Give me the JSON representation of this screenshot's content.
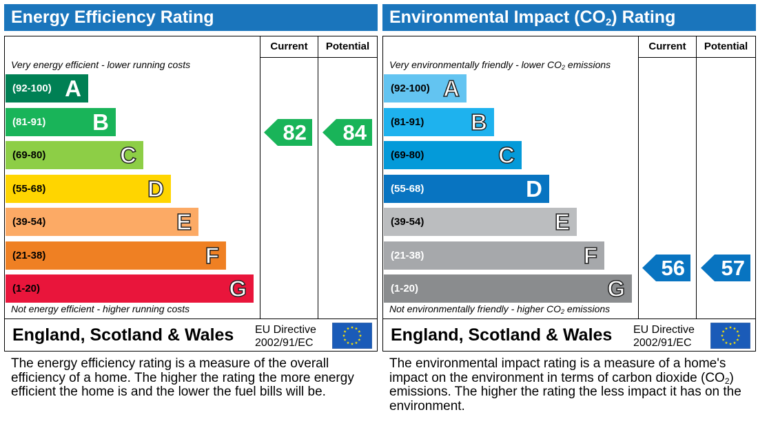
{
  "chart_data": [
    {
      "type": "bar",
      "title": "Energy Efficiency Rating",
      "columns": [
        "Current",
        "Potential"
      ],
      "top_note": "Very energy efficient - lower running costs",
      "bottom_note": "Not energy efficient - higher running costs",
      "categories": [
        "A",
        "B",
        "C",
        "D",
        "E",
        "F",
        "G"
      ],
      "bands": [
        {
          "range": "(92-100)",
          "letter": "A",
          "color": "#008054",
          "text_color": "#ffffff",
          "letter_style": "solid"
        },
        {
          "range": "(81-91)",
          "letter": "B",
          "color": "#19b459",
          "text_color": "#ffffff",
          "letter_style": "solid"
        },
        {
          "range": "(69-80)",
          "letter": "C",
          "color": "#8dce46",
          "text_color": "#000000",
          "letter_style": "outline"
        },
        {
          "range": "(55-68)",
          "letter": "D",
          "color": "#ffd500",
          "text_color": "#000000",
          "letter_style": "outline"
        },
        {
          "range": "(39-54)",
          "letter": "E",
          "color": "#fcaa65",
          "text_color": "#000000",
          "letter_style": "outline"
        },
        {
          "range": "(21-38)",
          "letter": "F",
          "color": "#ef8023",
          "text_color": "#000000",
          "letter_style": "outline"
        },
        {
          "range": "(1-20)",
          "letter": "G",
          "color": "#e9153b",
          "text_color": "#000000",
          "letter_style": "outline"
        }
      ],
      "current": {
        "value": 82,
        "band": "B",
        "color": "#19b459"
      },
      "potential": {
        "value": 84,
        "band": "B",
        "color": "#19b459"
      },
      "region": "England, Scotland & Wales",
      "directive": [
        "EU Directive",
        "2002/91/EC"
      ],
      "description": "The energy efficiency rating is a measure of the overall efficiency of a home. The higher the rating the more energy efficient the home is and the lower the fuel bills will be."
    },
    {
      "type": "bar",
      "title_parts": [
        "Environmental Impact (CO",
        "2",
        ") Rating"
      ],
      "columns": [
        "Current",
        "Potential"
      ],
      "top_note_parts": [
        "Very environmentally friendly - lower CO",
        "2",
        " emissions"
      ],
      "bottom_note_parts": [
        "Not environmentally friendly - higher CO",
        "2",
        " emissions"
      ],
      "categories": [
        "A",
        "B",
        "C",
        "D",
        "E",
        "F",
        "G"
      ],
      "bands": [
        {
          "range": "(92-100)",
          "letter": "A",
          "color": "#63c4f1",
          "text_color": "#000000",
          "letter_style": "outline"
        },
        {
          "range": "(81-91)",
          "letter": "B",
          "color": "#1eb2ee",
          "text_color": "#000000",
          "letter_style": "outline"
        },
        {
          "range": "(69-80)",
          "letter": "C",
          "color": "#049ad9",
          "text_color": "#000000",
          "letter_style": "outline"
        },
        {
          "range": "(55-68)",
          "letter": "D",
          "color": "#0874c1",
          "text_color": "#ffffff",
          "letter_style": "solid"
        },
        {
          "range": "(39-54)",
          "letter": "E",
          "color": "#bbbdbf",
          "text_color": "#000000",
          "letter_style": "outline"
        },
        {
          "range": "(21-38)",
          "letter": "F",
          "color": "#a6a8ab",
          "text_color": "#ffffff",
          "letter_style": "outline"
        },
        {
          "range": "(1-20)",
          "letter": "G",
          "color": "#8a8c8e",
          "text_color": "#ffffff",
          "letter_style": "outline"
        }
      ],
      "current": {
        "value": 56,
        "band": "D",
        "color": "#0874c1"
      },
      "potential": {
        "value": 57,
        "band": "D",
        "color": "#0874c1"
      },
      "region": "England, Scotland & Wales",
      "directive": [
        "EU Directive",
        "2002/91/EC"
      ],
      "description_parts": [
        "The environmental impact rating is a measure of a home's impact on the environment in terms of carbon dioxide (CO",
        "2",
        ") emissions. The higher the rating the less impact it has on the environment."
      ]
    }
  ],
  "header_color": "#1a75bc",
  "flag_color": "#1a5bb8",
  "flag_star_color": "#ffe600"
}
